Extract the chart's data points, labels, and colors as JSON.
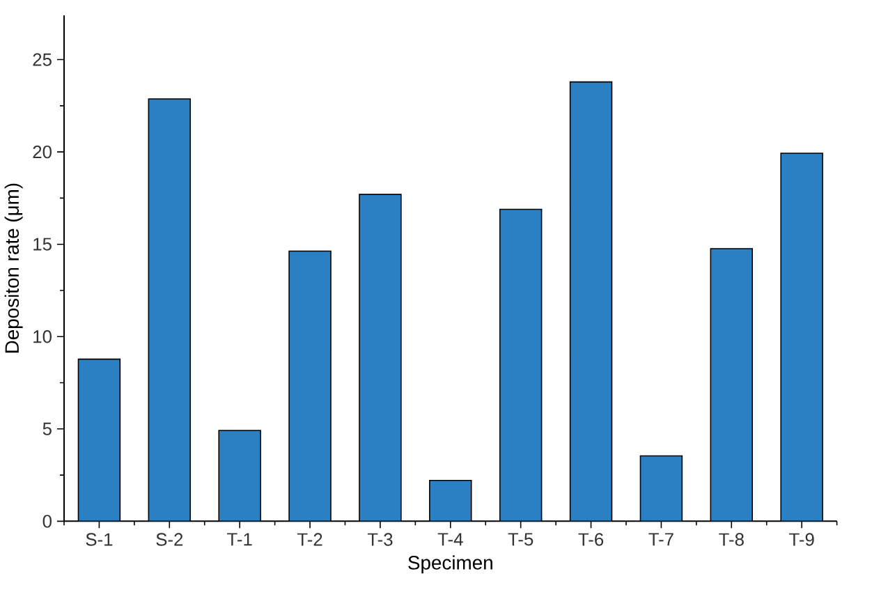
{
  "chart_data": {
    "type": "bar",
    "xlabel": "Specimen",
    "ylabel": "Depositon rate (μm)",
    "categories": [
      "S-1",
      "S-2",
      "T-1",
      "T-2",
      "T-3",
      "T-4",
      "T-5",
      "T-6",
      "T-7",
      "T-8",
      "T-9"
    ],
    "values": [
      8.78,
      22.87,
      4.92,
      14.63,
      17.7,
      2.21,
      16.89,
      23.79,
      3.54,
      14.76,
      19.93
    ],
    "color": "#2a80c2",
    "ylim": [
      0,
      27.4
    ],
    "yticks": [
      0,
      5,
      10,
      15,
      20,
      25
    ],
    "grid": false
  }
}
